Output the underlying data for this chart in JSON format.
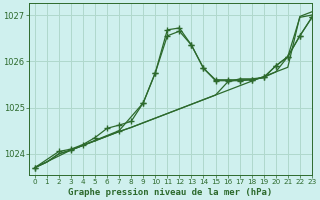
{
  "background_color": "#cff0ee",
  "grid_color": "#b0d8cc",
  "line_color": "#2d6a2d",
  "title": "Graphe pression niveau de la mer (hPa)",
  "xlim": [
    -0.5,
    23
  ],
  "ylim": [
    1023.55,
    1027.25
  ],
  "yticks": [
    1024,
    1025,
    1026,
    1027
  ],
  "xticks": [
    0,
    1,
    2,
    3,
    4,
    5,
    6,
    7,
    8,
    9,
    10,
    11,
    12,
    13,
    14,
    15,
    16,
    17,
    18,
    19,
    20,
    21,
    22,
    23
  ],
  "series": [
    {
      "x": [
        0,
        1,
        2,
        3,
        4,
        5,
        6,
        7,
        8,
        9,
        10,
        11,
        12,
        13,
        14,
        15,
        16,
        17,
        18,
        19,
        20,
        21,
        22,
        23
      ],
      "y": [
        1023.7,
        1023.82,
        1024.0,
        1024.08,
        1024.18,
        1024.28,
        1024.38,
        1024.48,
        1024.57,
        1024.67,
        1024.77,
        1024.87,
        1024.97,
        1025.07,
        1025.17,
        1025.27,
        1025.37,
        1025.47,
        1025.57,
        1025.67,
        1025.77,
        1025.87,
        1026.97,
        1027.07
      ]
    },
    {
      "x": [
        0,
        1,
        2,
        3,
        4,
        5,
        6,
        7,
        8,
        9,
        10,
        11,
        12,
        13,
        14,
        15,
        16,
        17,
        18,
        19,
        20,
        21,
        22,
        23
      ],
      "y": [
        1023.7,
        1023.82,
        1024.0,
        1024.08,
        1024.18,
        1024.28,
        1024.38,
        1024.48,
        1024.57,
        1024.67,
        1024.77,
        1024.87,
        1024.97,
        1025.07,
        1025.17,
        1025.27,
        1025.55,
        1025.62,
        1025.62,
        1025.65,
        1025.77,
        1026.1,
        1026.95,
        1027.0
      ]
    },
    {
      "x": [
        0,
        2,
        3,
        4,
        5,
        6,
        7,
        8,
        9,
        10,
        11,
        12,
        13,
        14,
        15,
        16,
        17,
        18,
        19,
        20,
        21,
        22,
        23
      ],
      "y": [
        1023.7,
        1024.05,
        1024.1,
        1024.2,
        1024.35,
        1024.55,
        1024.62,
        1024.7,
        1025.1,
        1025.75,
        1026.55,
        1026.65,
        1026.35,
        1025.85,
        1025.6,
        1025.6,
        1025.6,
        1025.6,
        1025.65,
        1025.9,
        1026.1,
        1026.55,
        1026.95
      ]
    },
    {
      "x": [
        0,
        3,
        7,
        9,
        10,
        11,
        12,
        13,
        14,
        15,
        16,
        17,
        18,
        19,
        20,
        21,
        22,
        23
      ],
      "y": [
        1023.7,
        1024.08,
        1024.5,
        1025.1,
        1025.75,
        1026.68,
        1026.72,
        1026.35,
        1025.85,
        1025.58,
        1025.58,
        1025.58,
        1025.6,
        1025.65,
        1025.9,
        1026.1,
        1026.55,
        1026.95
      ]
    }
  ]
}
